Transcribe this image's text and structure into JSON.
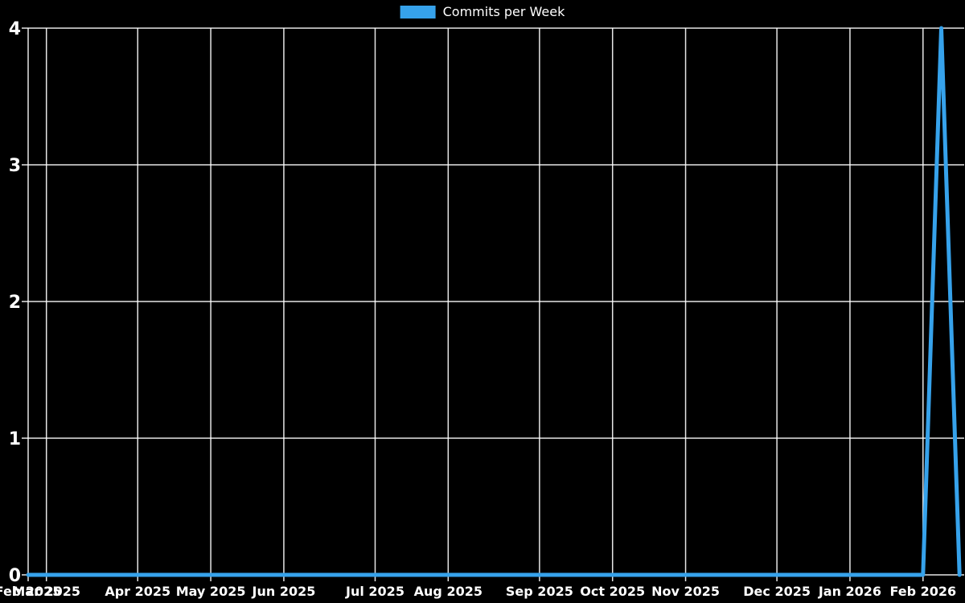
{
  "legend": {
    "position": "top",
    "items": [
      {
        "label": "Commits per Week",
        "color": "#36a2eb"
      }
    ]
  },
  "colors": {
    "background": "#000000",
    "grid": "#ffffff",
    "text": "#ffffff",
    "line": "#36a2eb"
  },
  "chart_data": {
    "type": "line",
    "title": "Commits per Week",
    "xlabel": "",
    "ylabel": "",
    "ylim": [
      0,
      4
    ],
    "y_ticks": [
      0,
      1,
      2,
      3,
      4
    ],
    "grid": true,
    "legend_position": "top",
    "x_unit": "week",
    "x_ticks": [
      {
        "label": "Feb 2025",
        "week": 0
      },
      {
        "label": "Mar 2025",
        "week": 1
      },
      {
        "label": "Apr 2025",
        "week": 6
      },
      {
        "label": "May 2025",
        "week": 10
      },
      {
        "label": "Jun 2025",
        "week": 14
      },
      {
        "label": "Jul 2025",
        "week": 19
      },
      {
        "label": "Aug 2025",
        "week": 23
      },
      {
        "label": "Sep 2025",
        "week": 28
      },
      {
        "label": "Oct 2025",
        "week": 32
      },
      {
        "label": "Nov 2025",
        "week": 36
      },
      {
        "label": "Dec 2025",
        "week": 41
      },
      {
        "label": "Jan 2026",
        "week": 45
      },
      {
        "label": "Feb 2026",
        "week": 49
      }
    ],
    "series": [
      {
        "name": "Commits per Week",
        "color": "#36a2eb",
        "values": [
          0,
          0,
          0,
          0,
          0,
          0,
          0,
          0,
          0,
          0,
          0,
          0,
          0,
          0,
          0,
          0,
          0,
          0,
          0,
          0,
          0,
          0,
          0,
          0,
          0,
          0,
          0,
          0,
          0,
          0,
          0,
          0,
          0,
          0,
          0,
          0,
          0,
          0,
          0,
          0,
          0,
          0,
          0,
          0,
          0,
          0,
          0,
          0,
          0,
          0,
          4,
          0
        ]
      }
    ]
  }
}
